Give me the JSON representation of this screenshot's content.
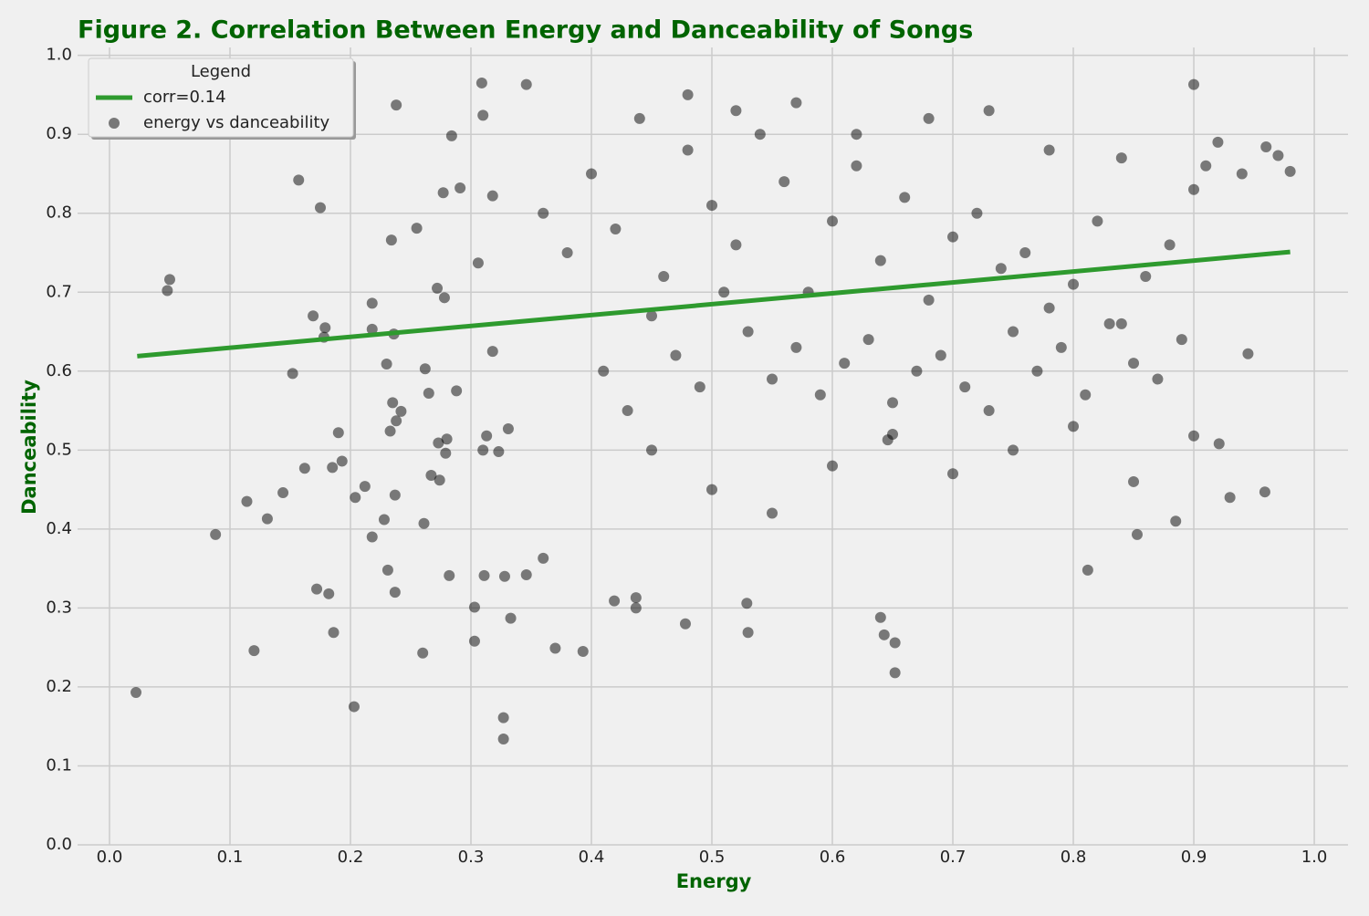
{
  "chart_data": {
    "type": "scatter",
    "title": "Figure 2. Correlation Between Energy and Danceability of Songs",
    "x_label": "Energy",
    "y_label": "Danceability",
    "xlim": [
      -0.0265,
      1.028
    ],
    "ylim": [
      0,
      1.01
    ],
    "xticks": [
      {
        "value": 0,
        "label": "0.0"
      },
      0.1,
      0.2,
      0.3,
      0.4,
      0.5,
      0.6,
      0.7,
      0.8,
      0.9,
      {
        "value": 1,
        "label": "1.0"
      }
    ],
    "yticks": [
      {
        "value": 0,
        "label": "0.0"
      },
      0.1,
      0.2,
      0.3,
      0.4,
      0.5,
      0.6,
      0.7,
      0.8,
      0.9,
      {
        "value": 1,
        "label": "1.0"
      }
    ],
    "grid": true,
    "legend_title": "Legend",
    "legend_position": "upper left",
    "series": [
      {
        "name": "corr=0.14",
        "type": "line",
        "color": "#2e9a2e",
        "x": [
          0.023,
          0.98
        ],
        "values": [
          0.619,
          0.751
        ]
      },
      {
        "name": "energy vs danceability",
        "type": "scatter",
        "color": "#000000",
        "x": [
          0.022,
          0.048,
          0.05,
          0.088,
          0.12,
          0.114,
          0.131,
          0.144,
          0.152,
          0.157,
          0.162,
          0.169,
          0.172,
          0.175,
          0.178,
          0.179,
          0.182,
          0.185,
          0.186,
          0.19,
          0.193,
          0.203,
          0.204,
          0.212,
          0.218,
          0.218,
          0.218,
          0.228,
          0.23,
          0.231,
          0.233,
          0.234,
          0.235,
          0.236,
          0.237,
          0.237,
          0.238,
          0.238,
          0.242,
          0.255,
          0.26,
          0.261,
          0.262,
          0.265,
          0.267,
          0.272,
          0.273,
          0.274,
          0.277,
          0.278,
          0.279,
          0.28,
          0.282,
          0.284,
          0.288,
          0.291,
          0.303,
          0.303,
          0.306,
          0.309,
          0.31,
          0.31,
          0.311,
          0.313,
          0.318,
          0.318,
          0.323,
          0.327,
          0.327,
          0.328,
          0.331,
          0.333,
          0.346,
          0.346,
          0.36,
          0.37,
          0.393,
          0.419,
          0.437,
          0.437,
          0.478,
          0.53,
          0.529,
          0.64,
          0.643,
          0.652,
          0.652,
          0.646,
          0.959,
          0.98,
          0.9,
          0.93,
          0.885,
          0.812,
          0.853,
          0.945,
          0.921,
          0.9,
          0.97,
          0.96,
          0.4,
          0.42,
          0.44,
          0.46,
          0.48,
          0.5,
          0.52,
          0.54,
          0.56,
          0.58,
          0.6,
          0.62,
          0.64,
          0.66,
          0.68,
          0.7,
          0.72,
          0.74,
          0.76,
          0.78,
          0.8,
          0.82,
          0.84,
          0.86,
          0.88,
          0.41,
          0.43,
          0.45,
          0.47,
          0.49,
          0.51,
          0.53,
          0.55,
          0.57,
          0.59,
          0.61,
          0.63,
          0.65,
          0.67,
          0.69,
          0.71,
          0.73,
          0.75,
          0.77,
          0.79,
          0.81,
          0.83,
          0.85,
          0.87,
          0.89,
          0.38,
          0.45,
          0.5,
          0.55,
          0.6,
          0.65,
          0.7,
          0.75,
          0.8,
          0.85,
          0.9,
          0.92,
          0.36,
          0.48,
          0.52,
          0.57,
          0.62,
          0.68,
          0.73,
          0.78,
          0.84,
          0.91,
          0.94
        ],
        "values": [
          0.193,
          0.702,
          0.716,
          0.393,
          0.246,
          0.435,
          0.413,
          0.446,
          0.597,
          0.842,
          0.477,
          0.67,
          0.324,
          0.807,
          0.643,
          0.655,
          0.318,
          0.478,
          0.269,
          0.522,
          0.486,
          0.175,
          0.44,
          0.454,
          0.39,
          0.686,
          0.653,
          0.412,
          0.609,
          0.348,
          0.524,
          0.766,
          0.56,
          0.647,
          0.32,
          0.443,
          0.537,
          0.937,
          0.549,
          0.781,
          0.243,
          0.407,
          0.603,
          0.572,
          0.468,
          0.705,
          0.509,
          0.462,
          0.826,
          0.693,
          0.496,
          0.514,
          0.341,
          0.898,
          0.575,
          0.832,
          0.258,
          0.301,
          0.737,
          0.965,
          0.924,
          0.5,
          0.341,
          0.518,
          0.822,
          0.625,
          0.498,
          0.161,
          0.134,
          0.34,
          0.527,
          0.287,
          0.963,
          0.342,
          0.363,
          0.249,
          0.245,
          0.309,
          0.3,
          0.313,
          0.28,
          0.269,
          0.306,
          0.288,
          0.266,
          0.256,
          0.218,
          0.513,
          0.447,
          0.853,
          0.963,
          0.44,
          0.41,
          0.348,
          0.393,
          0.622,
          0.508,
          0.518,
          0.873,
          0.884,
          0.85,
          0.78,
          0.92,
          0.72,
          0.88,
          0.81,
          0.76,
          0.9,
          0.84,
          0.7,
          0.79,
          0.86,
          0.74,
          0.82,
          0.69,
          0.77,
          0.8,
          0.73,
          0.75,
          0.68,
          0.71,
          0.79,
          0.66,
          0.72,
          0.76,
          0.6,
          0.55,
          0.67,
          0.62,
          0.58,
          0.7,
          0.65,
          0.59,
          0.63,
          0.57,
          0.61,
          0.64,
          0.56,
          0.6,
          0.62,
          0.58,
          0.55,
          0.65,
          0.6,
          0.63,
          0.57,
          0.66,
          0.61,
          0.59,
          0.64,
          0.75,
          0.5,
          0.45,
          0.42,
          0.48,
          0.52,
          0.47,
          0.5,
          0.53,
          0.46,
          0.83,
          0.89,
          0.8,
          0.95,
          0.93,
          0.94,
          0.9,
          0.92,
          0.93,
          0.88,
          0.87,
          0.86,
          0.85
        ]
      }
    ]
  }
}
